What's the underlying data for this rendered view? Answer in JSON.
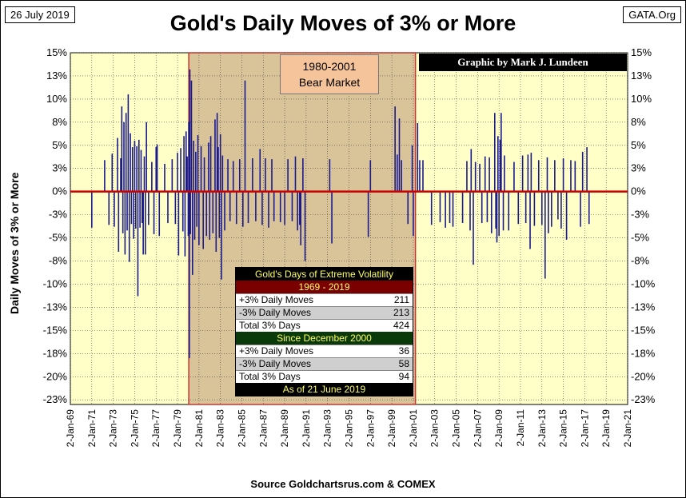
{
  "header": {
    "date": "26 July 2019",
    "site": "GATA.Org",
    "title": "Gold's Daily Moves of 3% or More",
    "source": "Source Goldchartsrus.com & COMEX",
    "credit": "Graphic by Mark J. Lundeen",
    "bear_line1": "1980-2001",
    "bear_line2": "Bear Market",
    "ylabel": "Daily Moves of 3% or More"
  },
  "stats": {
    "title": "Gold's Days of Extreme Volatility",
    "period1": "1969 - 2019",
    "rows1": [
      {
        "label": "+3% Daily Moves",
        "value": "211"
      },
      {
        "label": "-3% Daily Moves",
        "value": "213"
      },
      {
        "label": "Total 3% Days",
        "value": "424"
      }
    ],
    "period2": "Since December 2000",
    "rows2": [
      {
        "label": "+3% Daily Moves",
        "value": "36"
      },
      {
        "label": "-3% Daily Moves",
        "value": "58"
      },
      {
        "label": "Total 3% Days",
        "value": "94"
      }
    ],
    "asof": "As of 21 June 2019"
  },
  "colors": {
    "plot_bg": "#ffffc8",
    "bear_shade": "#d9c49a",
    "bar": "#1a1a8c",
    "zero_line": "#cc0000",
    "bear_border": "#cc3333"
  },
  "chart_data": {
    "type": "bar",
    "title": "Gold's Daily Moves of 3% or More",
    "ylabel": "Daily Moves of 3% or More",
    "xlabel": "",
    "ylim": [
      -23,
      15
    ],
    "xlim": [
      1969.0,
      2021.0
    ],
    "y_ticks": [
      15,
      12.5,
      10,
      7.5,
      5,
      2.5,
      0,
      -2.5,
      -5,
      -7.5,
      -10,
      -12.5,
      -15,
      -17.5,
      -20,
      -22.5
    ],
    "y_tick_labels": [
      "15%",
      "13%",
      "10%",
      "8%",
      "5%",
      "3%",
      "0%",
      "-3%",
      "-5%",
      "-8%",
      "-10%",
      "-13%",
      "-15%",
      "-18%",
      "-20%",
      "-23%"
    ],
    "x_tick_labels": [
      "2-Jan-69",
      "2-Jan-71",
      "2-Jan-73",
      "2-Jan-75",
      "2-Jan-77",
      "2-Jan-79",
      "2-Jan-81",
      "2-Jan-83",
      "2-Jan-85",
      "2-Jan-87",
      "2-Jan-89",
      "2-Jan-91",
      "2-Jan-93",
      "2-Jan-95",
      "2-Jan-97",
      "2-Jan-99",
      "2-Jan-01",
      "2-Jan-03",
      "2-Jan-05",
      "2-Jan-07",
      "2-Jan-09",
      "2-Jan-11",
      "2-Jan-13",
      "2-Jan-15",
      "2-Jan-17",
      "2-Jan-19",
      "2-Jan-21"
    ],
    "shaded_region": {
      "label": "1980-2001 Bear Market",
      "x_start": 1980.05,
      "x_end": 2001.2
    },
    "series": [
      {
        "name": "Daily moves of 3% or more",
        "points": [
          [
            1971.0,
            -3.9
          ],
          [
            1972.2,
            3.4
          ],
          [
            1972.6,
            -3.6
          ],
          [
            1972.9,
            4.1
          ],
          [
            1973.1,
            -3.8
          ],
          [
            1973.4,
            5.8
          ],
          [
            1973.5,
            -6.5
          ],
          [
            1973.7,
            3.6
          ],
          [
            1973.8,
            9.2
          ],
          [
            1973.9,
            -4.5
          ],
          [
            1974.0,
            7.5
          ],
          [
            1974.1,
            -6.8
          ],
          [
            1974.2,
            8.5
          ],
          [
            1974.3,
            -4.2
          ],
          [
            1974.4,
            10.5
          ],
          [
            1974.5,
            -7.6
          ],
          [
            1974.6,
            6.3
          ],
          [
            1974.7,
            -3.5
          ],
          [
            1974.8,
            4.8
          ],
          [
            1974.9,
            -5.1
          ],
          [
            1975.0,
            5.5
          ],
          [
            1975.1,
            -4.0
          ],
          [
            1975.2,
            4.9
          ],
          [
            1975.3,
            -11.3
          ],
          [
            1975.4,
            5.6
          ],
          [
            1975.5,
            -3.9
          ],
          [
            1975.6,
            4.5
          ],
          [
            1975.7,
            -3.4
          ],
          [
            1975.8,
            -6.8
          ],
          [
            1975.9,
            3.8
          ],
          [
            1976.0,
            -6.8
          ],
          [
            1976.1,
            7.5
          ],
          [
            1976.3,
            -3.6
          ],
          [
            1976.6,
            3.2
          ],
          [
            1976.8,
            -4.6
          ],
          [
            1977.0,
            4.8
          ],
          [
            1977.1,
            5.1
          ],
          [
            1977.3,
            -4.8
          ],
          [
            1977.8,
            3.0
          ],
          [
            1978.1,
            -3.4
          ],
          [
            1978.5,
            3.5
          ],
          [
            1978.8,
            -3.5
          ],
          [
            1979.0,
            4.2
          ],
          [
            1979.1,
            -6.9
          ],
          [
            1979.3,
            4.7
          ],
          [
            1979.5,
            -4.3
          ],
          [
            1979.6,
            6.0
          ],
          [
            1979.7,
            -7.0
          ],
          [
            1979.8,
            6.5
          ],
          [
            1979.9,
            3.8
          ],
          [
            1980.0,
            -4.8
          ],
          [
            1980.05,
            7.5
          ],
          [
            1980.1,
            -18.0
          ],
          [
            1980.15,
            13.2
          ],
          [
            1980.2,
            -4.6
          ],
          [
            1980.3,
            12.0
          ],
          [
            1980.4,
            -9.0
          ],
          [
            1980.5,
            5.5
          ],
          [
            1980.6,
            -5.2
          ],
          [
            1980.7,
            4.3
          ],
          [
            1980.8,
            -3.8
          ],
          [
            1980.9,
            6.1
          ],
          [
            1981.0,
            -5.8
          ],
          [
            1981.2,
            4.9
          ],
          [
            1981.4,
            -6.2
          ],
          [
            1981.5,
            3.7
          ],
          [
            1981.7,
            -4.8
          ],
          [
            1981.9,
            5.3
          ],
          [
            1982.0,
            -5.2
          ],
          [
            1982.1,
            6.0
          ],
          [
            1982.3,
            -4.5
          ],
          [
            1982.5,
            7.8
          ],
          [
            1982.6,
            -6.5
          ],
          [
            1982.7,
            8.5
          ],
          [
            1982.8,
            4.8
          ],
          [
            1982.9,
            -5.0
          ],
          [
            1983.0,
            6.2
          ],
          [
            1983.1,
            -9.5
          ],
          [
            1983.2,
            3.9
          ],
          [
            1983.4,
            -4.2
          ],
          [
            1983.7,
            3.5
          ],
          [
            1983.9,
            -3.2
          ],
          [
            1984.2,
            3.3
          ],
          [
            1984.5,
            -3.5
          ],
          [
            1984.8,
            3.5
          ],
          [
            1985.1,
            -3.8
          ],
          [
            1985.3,
            12.0
          ],
          [
            1985.6,
            -3.4
          ],
          [
            1986.0,
            3.6
          ],
          [
            1986.3,
            -3.2
          ],
          [
            1986.7,
            4.6
          ],
          [
            1986.9,
            -3.6
          ],
          [
            1987.2,
            3.6
          ],
          [
            1987.5,
            -3.9
          ],
          [
            1987.8,
            3.5
          ],
          [
            1988.0,
            -3.2
          ],
          [
            1988.6,
            -3.3
          ],
          [
            1989.0,
            -3.6
          ],
          [
            1989.3,
            3.5
          ],
          [
            1989.7,
            -3.2
          ],
          [
            1990.0,
            3.8
          ],
          [
            1990.2,
            -4.2
          ],
          [
            1990.4,
            -3.6
          ],
          [
            1990.5,
            -5.8
          ],
          [
            1990.7,
            3.6
          ],
          [
            1990.9,
            -7.5
          ],
          [
            1993.2,
            3.5
          ],
          [
            1993.4,
            -5.6
          ],
          [
            1996.8,
            -4.9
          ],
          [
            1997.0,
            3.4
          ],
          [
            1999.3,
            9.2
          ],
          [
            1999.5,
            4.0
          ],
          [
            1999.7,
            7.9
          ],
          [
            1999.9,
            3.4
          ],
          [
            2000.5,
            -3.5
          ],
          [
            2000.9,
            5.0
          ],
          [
            2001.0,
            -4.8
          ],
          [
            2001.4,
            7.4
          ],
          [
            2001.6,
            3.4
          ],
          [
            2001.9,
            3.4
          ],
          [
            2002.7,
            -3.6
          ],
          [
            2003.5,
            -3.3
          ],
          [
            2004.0,
            -3.9
          ],
          [
            2004.4,
            -3.4
          ],
          [
            2004.7,
            -3.8
          ],
          [
            2005.6,
            -3.4
          ],
          [
            2006.0,
            3.3
          ],
          [
            2006.3,
            -4.2
          ],
          [
            2006.4,
            4.6
          ],
          [
            2006.6,
            -7.9
          ],
          [
            2006.8,
            3.2
          ],
          [
            2007.2,
            3.0
          ],
          [
            2007.4,
            -3.4
          ],
          [
            2007.7,
            3.8
          ],
          [
            2007.9,
            -3.3
          ],
          [
            2008.1,
            3.7
          ],
          [
            2008.3,
            -4.5
          ],
          [
            2008.6,
            8.5
          ],
          [
            2008.7,
            -4.0
          ],
          [
            2008.8,
            -5.5
          ],
          [
            2008.9,
            6.0
          ],
          [
            2009.0,
            -4.8
          ],
          [
            2009.1,
            5.6
          ],
          [
            2009.2,
            8.5
          ],
          [
            2009.4,
            -4.2
          ],
          [
            2009.5,
            3.9
          ],
          [
            2009.9,
            -4.2
          ],
          [
            2010.4,
            3.2
          ],
          [
            2010.8,
            -3.5
          ],
          [
            2011.2,
            3.9
          ],
          [
            2011.5,
            -3.4
          ],
          [
            2011.7,
            4.0
          ],
          [
            2011.9,
            -6.2
          ],
          [
            2012.0,
            4.2
          ],
          [
            2012.3,
            -3.7
          ],
          [
            2012.7,
            3.4
          ],
          [
            2013.0,
            -3.6
          ],
          [
            2013.3,
            -9.4
          ],
          [
            2013.5,
            3.7
          ],
          [
            2013.6,
            -4.5
          ],
          [
            2013.9,
            -3.8
          ],
          [
            2014.2,
            3.4
          ],
          [
            2014.5,
            -3.0
          ],
          [
            2014.8,
            -4.0
          ],
          [
            2015.0,
            3.6
          ],
          [
            2015.3,
            -5.2
          ],
          [
            2015.7,
            3.4
          ],
          [
            2016.1,
            3.3
          ],
          [
            2016.6,
            -3.8
          ],
          [
            2016.8,
            4.3
          ],
          [
            2017.2,
            4.8
          ],
          [
            2017.4,
            -3.5
          ]
        ]
      }
    ]
  }
}
